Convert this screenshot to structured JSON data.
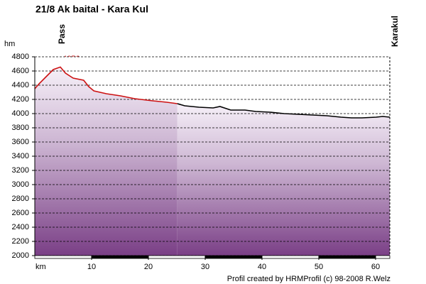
{
  "chart_data": {
    "type": "line",
    "title": "21/8 Ak baital - Kara Kul",
    "x_label": "km",
    "y_label": "hm",
    "annotations": [
      "Pass",
      "Karakul",
      "4656 m"
    ],
    "footer": "Profil created by HRMProfil (c) 98-2008 R.Welz",
    "xlim": [
      0,
      62.5
    ],
    "xticks": [
      10,
      20,
      30,
      40,
      50,
      60
    ],
    "ylim": [
      2000,
      4800
    ],
    "yticks": [
      2000,
      2200,
      2400,
      2600,
      2800,
      3000,
      3200,
      3400,
      3600,
      3800,
      4000,
      4200,
      4400,
      4600,
      4800
    ],
    "grid": true,
    "series": [
      {
        "color": "#cc1111",
        "x": [
          0,
          0.75,
          2,
          3.25,
          4.5,
          5.4,
          6.75,
          8.6,
          9.5,
          10.4,
          12.6,
          15.1,
          17.6,
          20.75,
          23.25,
          25.1
        ],
        "values": [
          4350,
          4420,
          4520,
          4620,
          4656,
          4570,
          4500,
          4470,
          4380,
          4320,
          4280,
          4250,
          4210,
          4180,
          4160,
          4140
        ]
      },
      {
        "color": "#000000",
        "x": [
          25.1,
          26.4,
          28.9,
          31.4,
          32.6,
          34.5,
          37,
          38.9,
          41.4,
          43.9,
          46.4,
          48.9,
          51.4,
          53.9,
          55.75,
          57.6,
          60.1,
          61.25,
          62.5
        ],
        "values": [
          4140,
          4110,
          4090,
          4080,
          4100,
          4050,
          4050,
          4030,
          4020,
          4000,
          3990,
          3980,
          3970,
          3950,
          3940,
          3940,
          3950,
          3960,
          3950
        ]
      }
    ]
  }
}
